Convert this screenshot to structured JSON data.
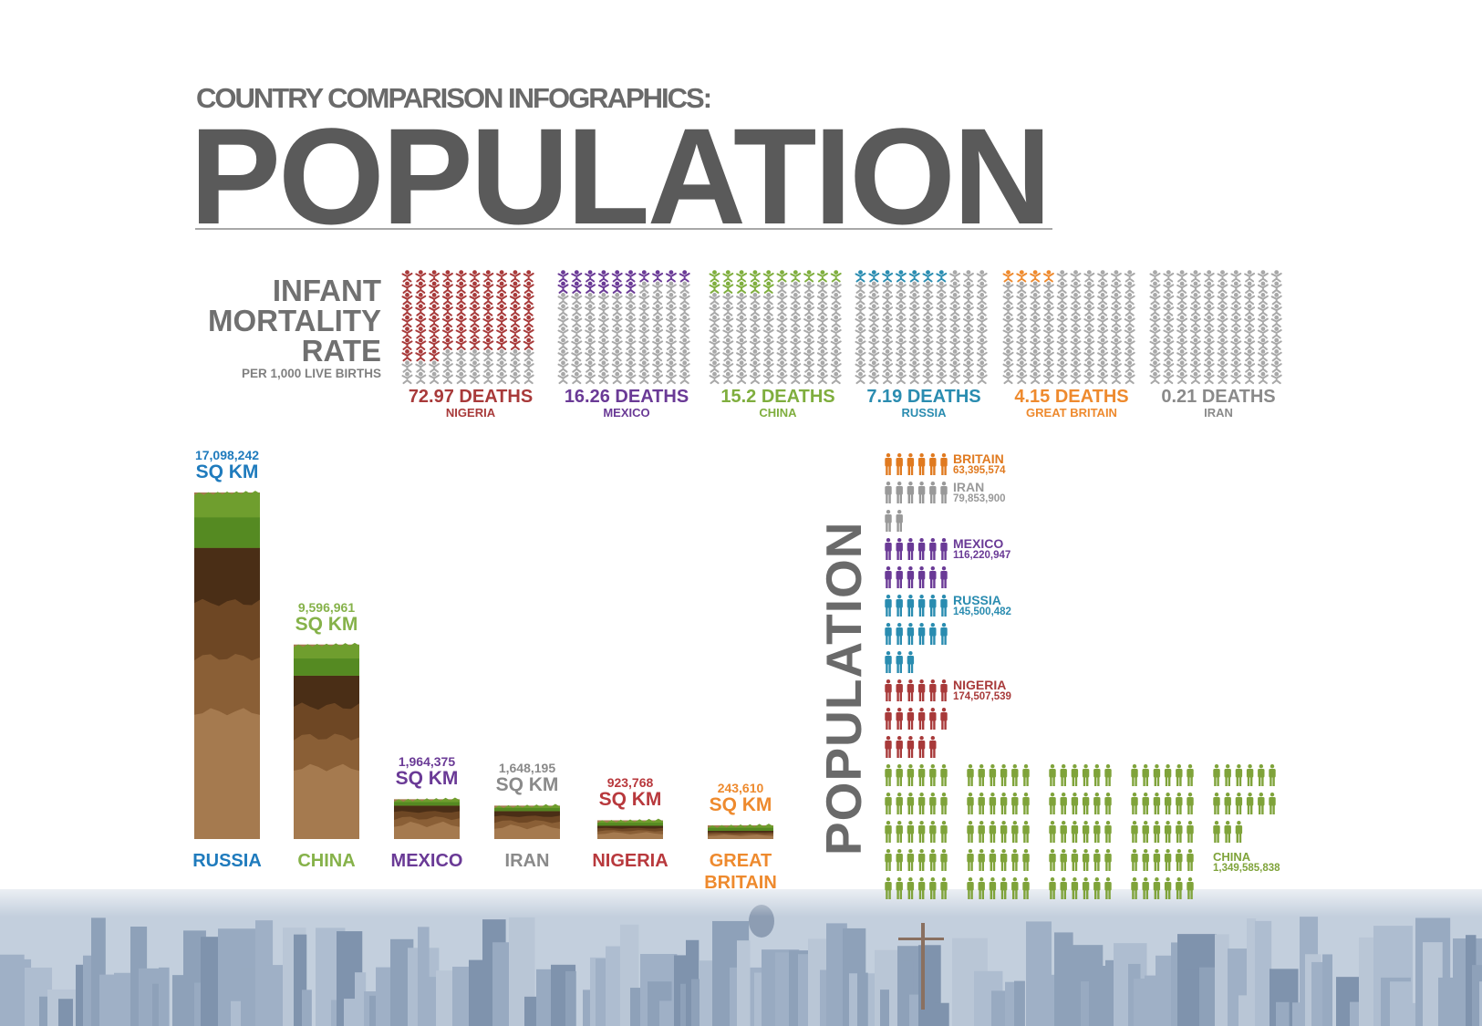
{
  "header": {
    "subtitle": "COUNTRY COMPARISON INFOGRAPHICS:",
    "title": "POPULATION"
  },
  "infant_mortality": {
    "title_lines": [
      "INFANT",
      "MORTALITY",
      "RATE"
    ],
    "subtitle": "PER 1,000 LIVE BIRTHS",
    "items": [
      {
        "deaths_label": "72.97 DEATHS",
        "country": "NIGERIA",
        "value": 72.97,
        "color": "#a83a3a"
      },
      {
        "deaths_label": "16.26 DEATHS",
        "country": "MEXICO",
        "value": 16.26,
        "color": "#6a3a96"
      },
      {
        "deaths_label": "15.2 DEATHS",
        "country": "CHINA",
        "value": 15.2,
        "color": "#7fae3e"
      },
      {
        "deaths_label": "7.19 DEATHS",
        "country": "RUSSIA",
        "value": 7.19,
        "color": "#2a8cb0"
      },
      {
        "deaths_label": "4.15 DEATHS",
        "country": "GREAT BRITAIN",
        "value": 4.15,
        "color": "#ee8a2e"
      },
      {
        "deaths_label": "0.21 DEATHS",
        "country": "IRAN",
        "value": 0.21,
        "color": "#8a8a8a"
      }
    ]
  },
  "area": {
    "items": [
      {
        "value_label": "17,098,242",
        "unit": "SQ KM",
        "country": "RUSSIA",
        "value": 17098242,
        "color": "#1f7bbd"
      },
      {
        "value_label": "9,596,961",
        "unit": "SQ KM",
        "country": "CHINA",
        "value": 9596961,
        "color": "#86b24a"
      },
      {
        "value_label": "1,964,375",
        "unit": "SQ KM",
        "country": "MEXICO",
        "value": 1964375,
        "color": "#6a3a96"
      },
      {
        "value_label": "1,648,195",
        "unit": "SQ KM",
        "country": "IRAN",
        "value": 1648195,
        "color": "#8a8a8a"
      },
      {
        "value_label": "923,768",
        "unit": "SQ KM",
        "country": "NIGERIA",
        "value": 923768,
        "color": "#b8393d"
      },
      {
        "value_label": "243,610",
        "unit": "SQ KM",
        "country": "GREAT BRITAIN",
        "value": 243610,
        "color": "#ee8a2e"
      }
    ]
  },
  "population": {
    "title": "POPULATION",
    "items": [
      {
        "name": "BRITAIN",
        "value_label": "63,395,574",
        "value": 63395574,
        "color": "#e07a20"
      },
      {
        "name": "IRAN",
        "value_label": "79,853,900",
        "value": 79853900,
        "color": "#999999"
      },
      {
        "name": "MEXICO",
        "value_label": "116,220,947",
        "value": 116220947,
        "color": "#6a3a96"
      },
      {
        "name": "RUSSIA",
        "value_label": "145,500,482",
        "value": 145500482,
        "color": "#2a8cb0"
      },
      {
        "name": "NIGERIA",
        "value_label": "174,507,539",
        "value": 174507539,
        "color": "#a83a3a"
      },
      {
        "name": "CHINA",
        "value_label": "1,349,585,838",
        "value": 1349585838,
        "color": "#7fa33a"
      }
    ]
  },
  "chart_data": [
    {
      "type": "bar",
      "categories": [
        "NIGERIA",
        "MEXICO",
        "CHINA",
        "RUSSIA",
        "GREAT BRITAIN",
        "IRAN"
      ],
      "values": [
        72.97,
        16.26,
        15.2,
        7.19,
        4.15,
        0.21
      ],
      "title": "INFANT MORTALITY RATE",
      "subtitle": "PER 1,000 LIVE BIRTHS"
    },
    {
      "type": "bar",
      "categories": [
        "RUSSIA",
        "CHINA",
        "MEXICO",
        "IRAN",
        "NIGERIA",
        "GREAT BRITAIN"
      ],
      "values": [
        17098242,
        9596961,
        1964375,
        1648195,
        923768,
        243610
      ],
      "ylabel": "SQ KM"
    },
    {
      "type": "bar",
      "categories": [
        "BRITAIN",
        "IRAN",
        "MEXICO",
        "RUSSIA",
        "NIGERIA",
        "CHINA"
      ],
      "values": [
        63395574,
        79853900,
        116220947,
        145500482,
        174507539,
        1349585838
      ],
      "title": "POPULATION"
    }
  ]
}
